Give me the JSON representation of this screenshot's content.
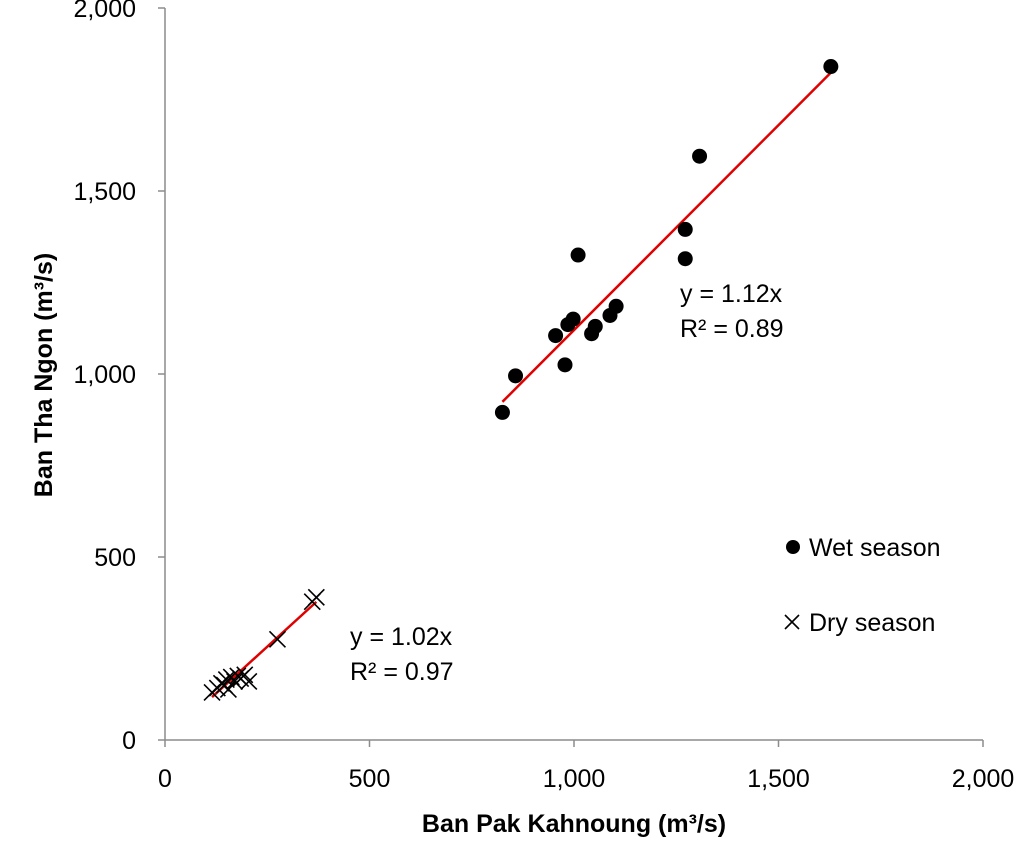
{
  "chart_data": {
    "type": "scatter",
    "title": "",
    "xlabel": "Ban Pak Kahnoung (m³/s)",
    "ylabel": "Ban Tha Ngon (m³/s)",
    "xlim": [
      0,
      2000
    ],
    "ylim": [
      0,
      2000
    ],
    "x_ticks": [
      0,
      500,
      1000,
      1500,
      2000
    ],
    "y_ticks": [
      0,
      500,
      1000,
      1500,
      2000
    ],
    "x_tick_labels": [
      "0",
      "500",
      "1,000",
      "1,500",
      "2,000"
    ],
    "y_tick_labels": [
      "0",
      "500",
      "1,000",
      "1,500",
      "2,000"
    ],
    "grid": false,
    "legend_position": "right",
    "series": [
      {
        "name": "Wet season",
        "marker": "circle",
        "color": "#000000",
        "points": [
          [
            825,
            895
          ],
          [
            857,
            995
          ],
          [
            955,
            1105
          ],
          [
            978,
            1025
          ],
          [
            985,
            1135
          ],
          [
            998,
            1150
          ],
          [
            1010,
            1325
          ],
          [
            1043,
            1110
          ],
          [
            1052,
            1130
          ],
          [
            1088,
            1160
          ],
          [
            1103,
            1185
          ],
          [
            1272,
            1395
          ],
          [
            1272,
            1315
          ],
          [
            1307,
            1595
          ],
          [
            1628,
            1840
          ]
        ],
        "trendline": {
          "slope": 1.12,
          "x_range": [
            825,
            1628
          ],
          "color": "#e00000"
        },
        "equation": "y = 1.12x",
        "r2": "R² = 0.89"
      },
      {
        "name": "Dry season",
        "marker": "x",
        "color": "#000000",
        "points": [
          [
            115,
            130
          ],
          [
            128,
            142
          ],
          [
            138,
            155
          ],
          [
            145,
            150
          ],
          [
            150,
            165
          ],
          [
            155,
            138
          ],
          [
            162,
            172
          ],
          [
            170,
            160
          ],
          [
            178,
            175
          ],
          [
            185,
            168
          ],
          [
            195,
            178
          ],
          [
            205,
            160
          ],
          [
            275,
            275
          ],
          [
            360,
            378
          ],
          [
            370,
            390
          ]
        ],
        "trendline": {
          "slope": 1.02,
          "x_range": [
            115,
            370
          ],
          "color": "#e00000"
        },
        "equation": "y = 1.02x",
        "r2": "R² = 0.97"
      }
    ]
  }
}
